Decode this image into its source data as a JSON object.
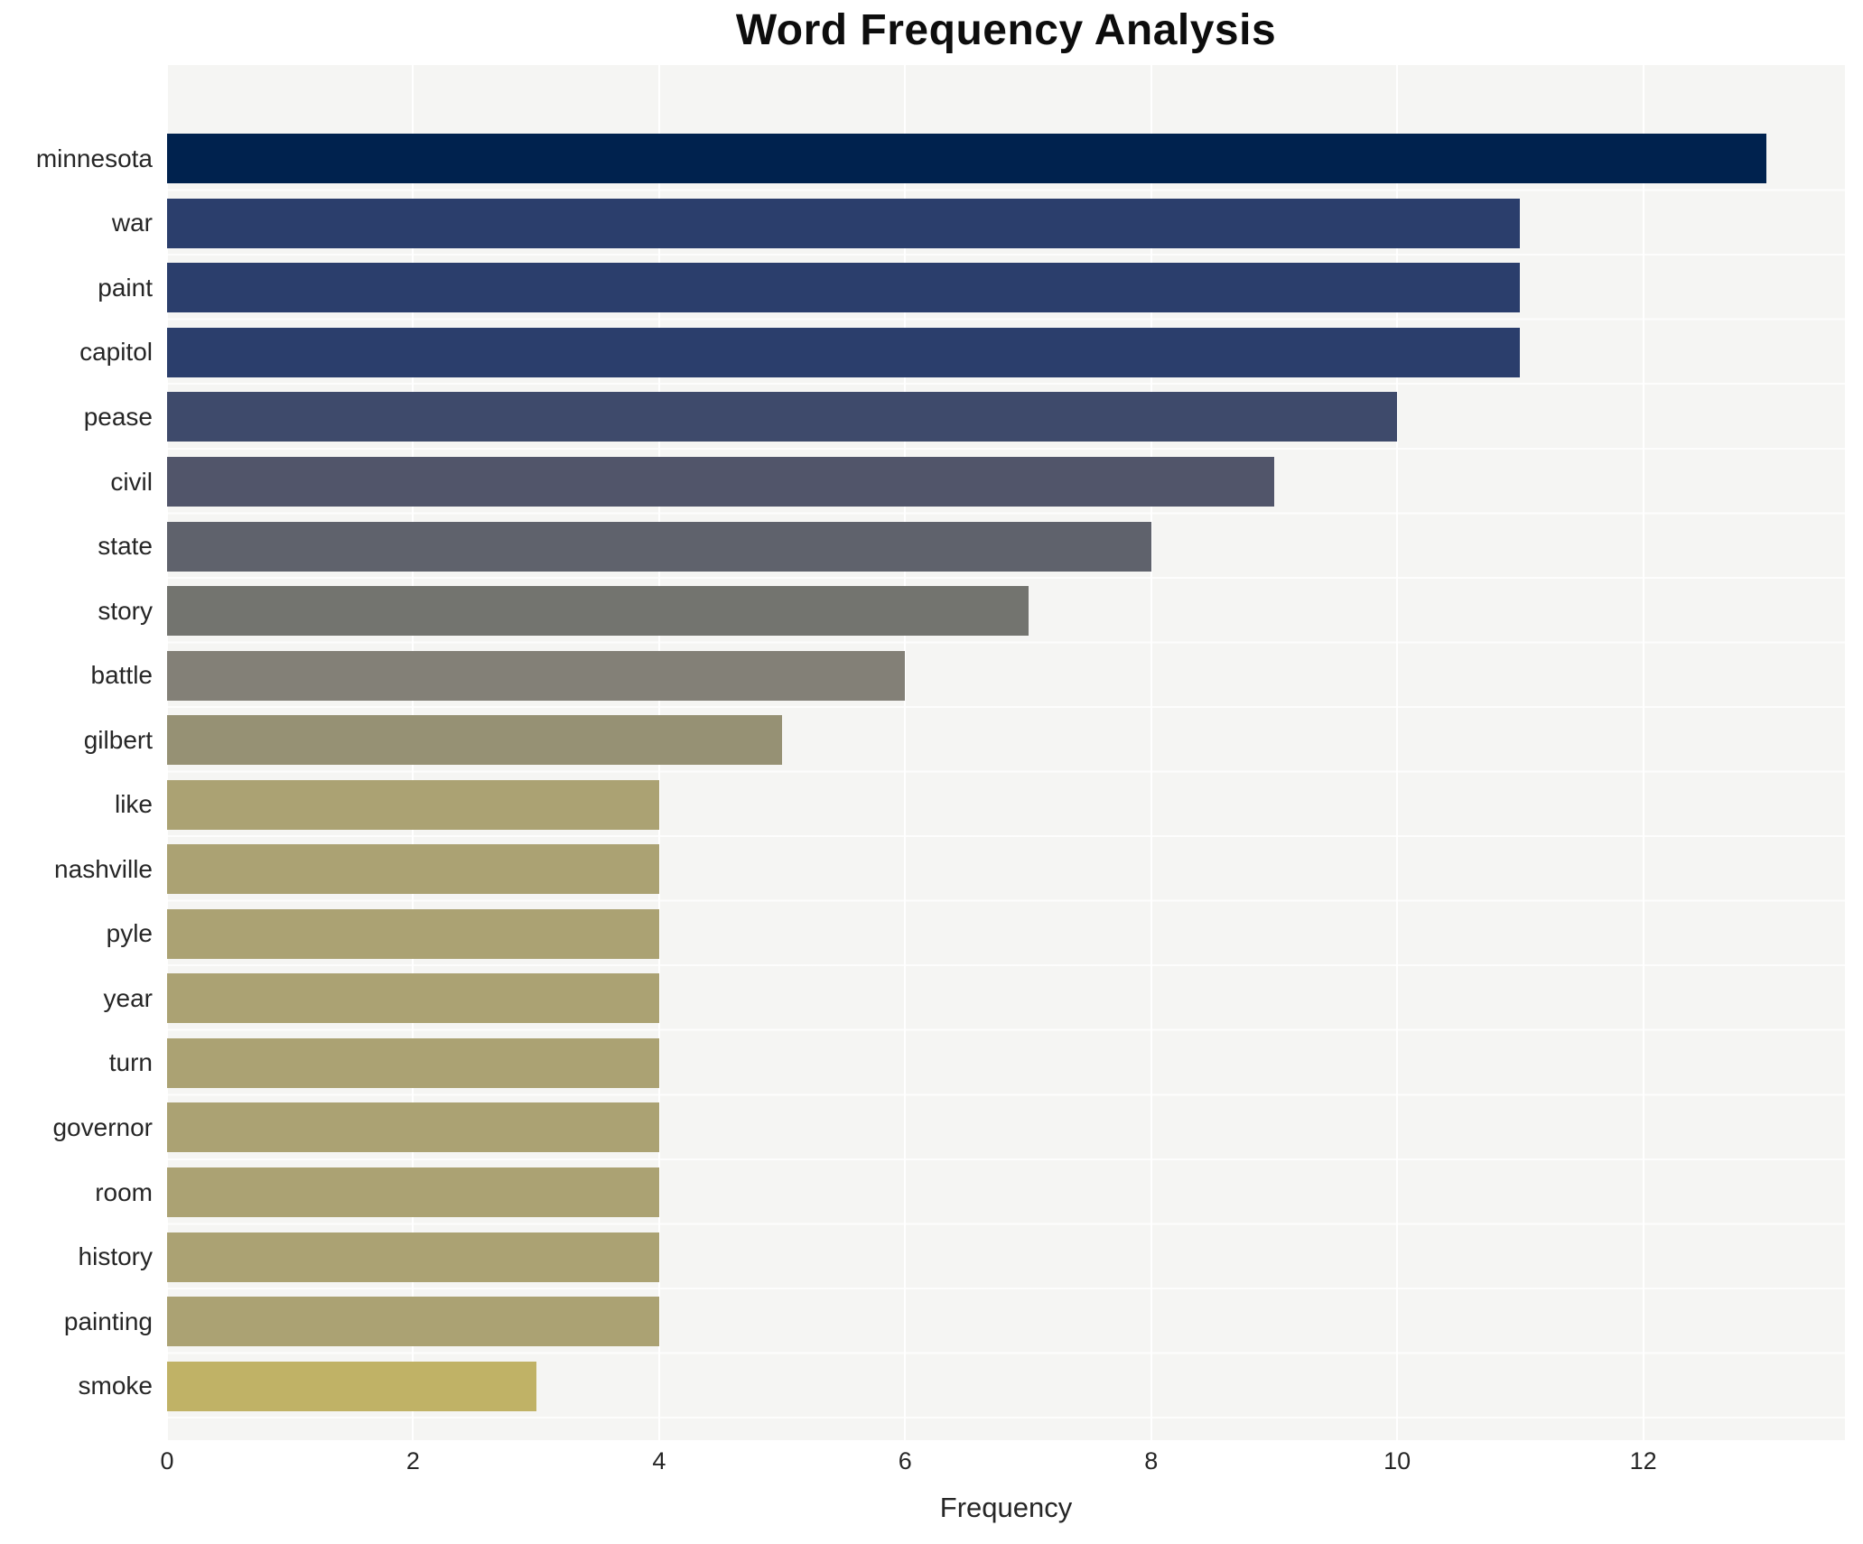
{
  "title": "Word Frequency Analysis",
  "chart_data": {
    "type": "bar",
    "orientation": "horizontal",
    "title": "Word Frequency Analysis",
    "xlabel": "Frequency",
    "ylabel": "",
    "categories": [
      "minnesota",
      "war",
      "paint",
      "capitol",
      "pease",
      "civil",
      "state",
      "story",
      "battle",
      "gilbert",
      "like",
      "nashville",
      "pyle",
      "year",
      "turn",
      "governor",
      "room",
      "history",
      "painting",
      "smoke"
    ],
    "values": [
      13,
      11,
      11,
      11,
      10,
      9,
      8,
      7,
      6,
      5,
      4,
      4,
      4,
      4,
      4,
      4,
      4,
      4,
      4,
      3
    ],
    "bar_colors": [
      "#00224e",
      "#2b3e6c",
      "#2b3e6c",
      "#2b3e6c",
      "#3e4a6b",
      "#51556a",
      "#5f626c",
      "#73746f",
      "#838077",
      "#969174",
      "#aba273",
      "#aba273",
      "#aba273",
      "#aba273",
      "#aba273",
      "#aba273",
      "#aba273",
      "#aba273",
      "#aba273",
      "#c0b266"
    ],
    "x_ticks": [
      0,
      2,
      4,
      6,
      8,
      10,
      12
    ],
    "xlim": [
      0,
      13.64
    ],
    "grid": "white vertical gridlines at even ticks and faint white horizontal lines on light gray plot background",
    "legend": "none",
    "plot_background": "#f5f5f3",
    "figure_background": "#ffffff",
    "colormap": "cividis (high values dark navy, low values khaki gold)"
  }
}
